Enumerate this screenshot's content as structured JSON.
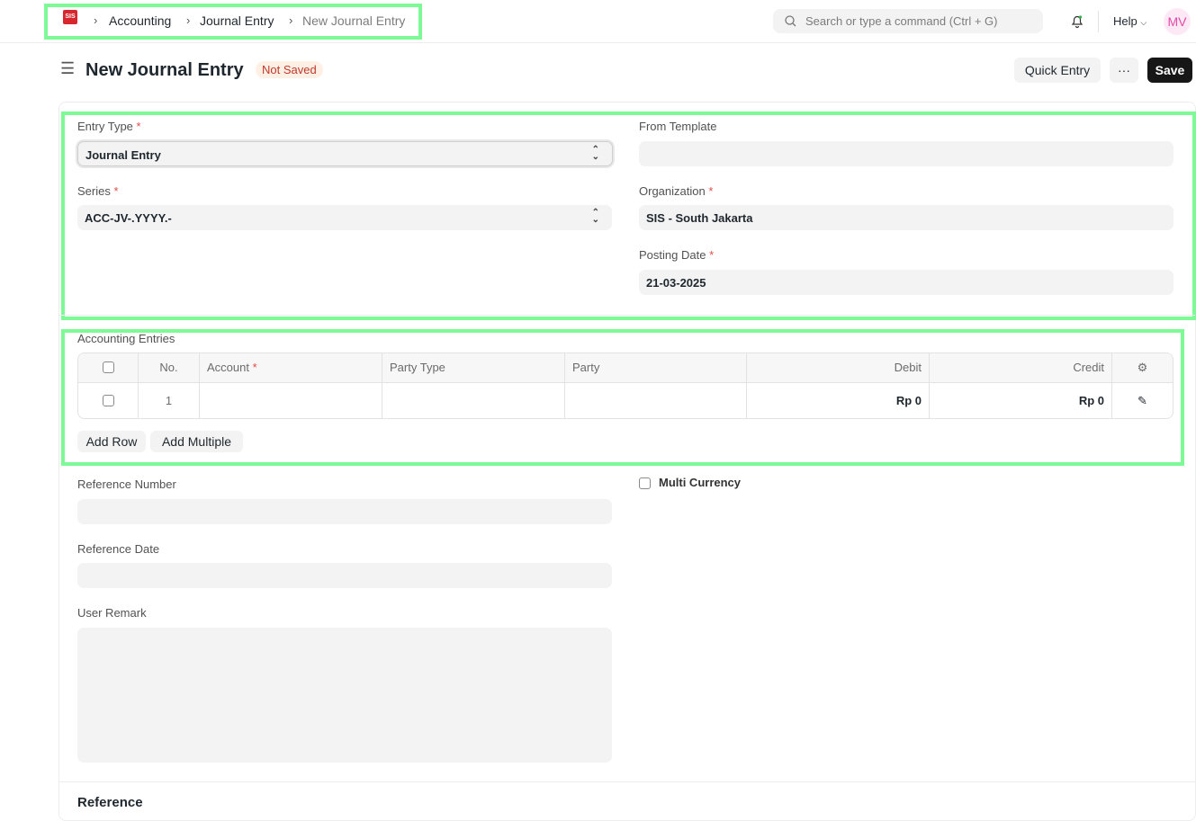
{
  "navbar": {
    "logo_text": "SIS",
    "breadcrumbs": [
      "Accounting",
      "Journal Entry",
      "New Journal Entry"
    ],
    "search_placeholder": "Search or type a command (Ctrl + G)",
    "help": "Help",
    "avatar": "MV"
  },
  "page": {
    "title": "New Journal Entry",
    "status": "Not Saved",
    "quick_entry": "Quick Entry",
    "more": "···",
    "save": "Save"
  },
  "form": {
    "entry_type": {
      "label": "Entry Type",
      "value": "Journal Entry"
    },
    "from_template": {
      "label": "From Template",
      "value": ""
    },
    "series": {
      "label": "Series",
      "value": "ACC-JV-.YYYY.-"
    },
    "organization": {
      "label": "Organization",
      "value": "SIS - South Jakarta"
    },
    "posting_date": {
      "label": "Posting Date",
      "value": "21-03-2025"
    },
    "required_mark": "*"
  },
  "entries": {
    "label": "Accounting Entries",
    "columns": [
      "No.",
      "Account",
      "Party Type",
      "Party",
      "Debit",
      "Credit"
    ],
    "rows": [
      {
        "no": "1",
        "account": "",
        "party_type": "",
        "party": "",
        "debit": "Rp 0",
        "credit": "Rp 0"
      }
    ],
    "add_row": "Add Row",
    "add_multiple": "Add Multiple"
  },
  "more_fields": {
    "reference_number": "Reference Number",
    "reference_date": "Reference Date",
    "user_remark": "User Remark",
    "multi_currency": "Multi Currency",
    "reference_section": "Reference"
  },
  "colors": {
    "accent": "#171717",
    "highlight": "#7dfa95",
    "status_bg": "#fff0e6",
    "status_text": "#c0392b"
  }
}
